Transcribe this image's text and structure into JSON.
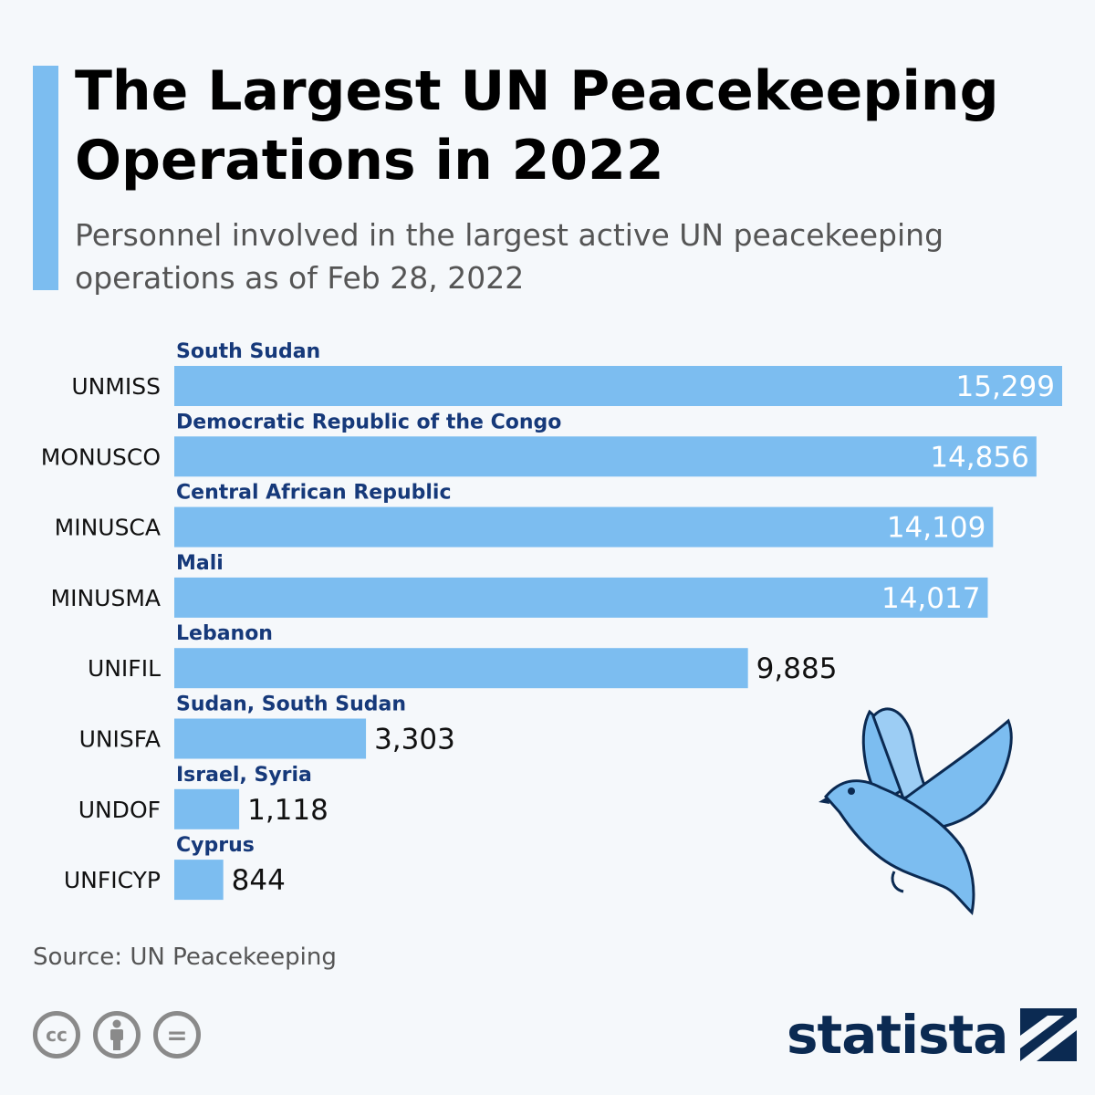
{
  "title": "The Largest UN Peacekeeping Operations in 2022",
  "subtitle": "Personnel involved in the largest active UN peacekeeping operations as of Feb 28, 2022",
  "source": "Source: UN Peacekeeping",
  "logo_text": "statista",
  "colors": {
    "bar": "#7cbdf0",
    "country": "#16397a",
    "logo": "#0b2a52"
  },
  "icons": [
    "cc-icon",
    "attribution-icon",
    "no-derivatives-icon",
    "dove-icon",
    "statista-logo-icon"
  ],
  "license": {
    "cc": "cc",
    "nd": "="
  },
  "chart_data": {
    "type": "bar",
    "orientation": "horizontal",
    "categories": [
      "UNMISS",
      "MONUSCO",
      "MINUSCA",
      "MINUSMA",
      "UNIFIL",
      "UNISFA",
      "UNDOF",
      "UNFICYP"
    ],
    "countries": [
      "South Sudan",
      "Democratic Republic of the Congo",
      "Central African Republic",
      "Mali",
      "Lebanon",
      "Sudan, South Sudan",
      "Israel, Syria",
      "Cyprus"
    ],
    "values": [
      15299,
      14856,
      14109,
      14017,
      9885,
      3303,
      1118,
      844
    ],
    "value_labels": [
      "15,299",
      "14,856",
      "14,109",
      "14,017",
      "9,885",
      "3,303",
      "1,118",
      "844"
    ],
    "xlim": [
      0,
      15299
    ],
    "grid": false
  }
}
